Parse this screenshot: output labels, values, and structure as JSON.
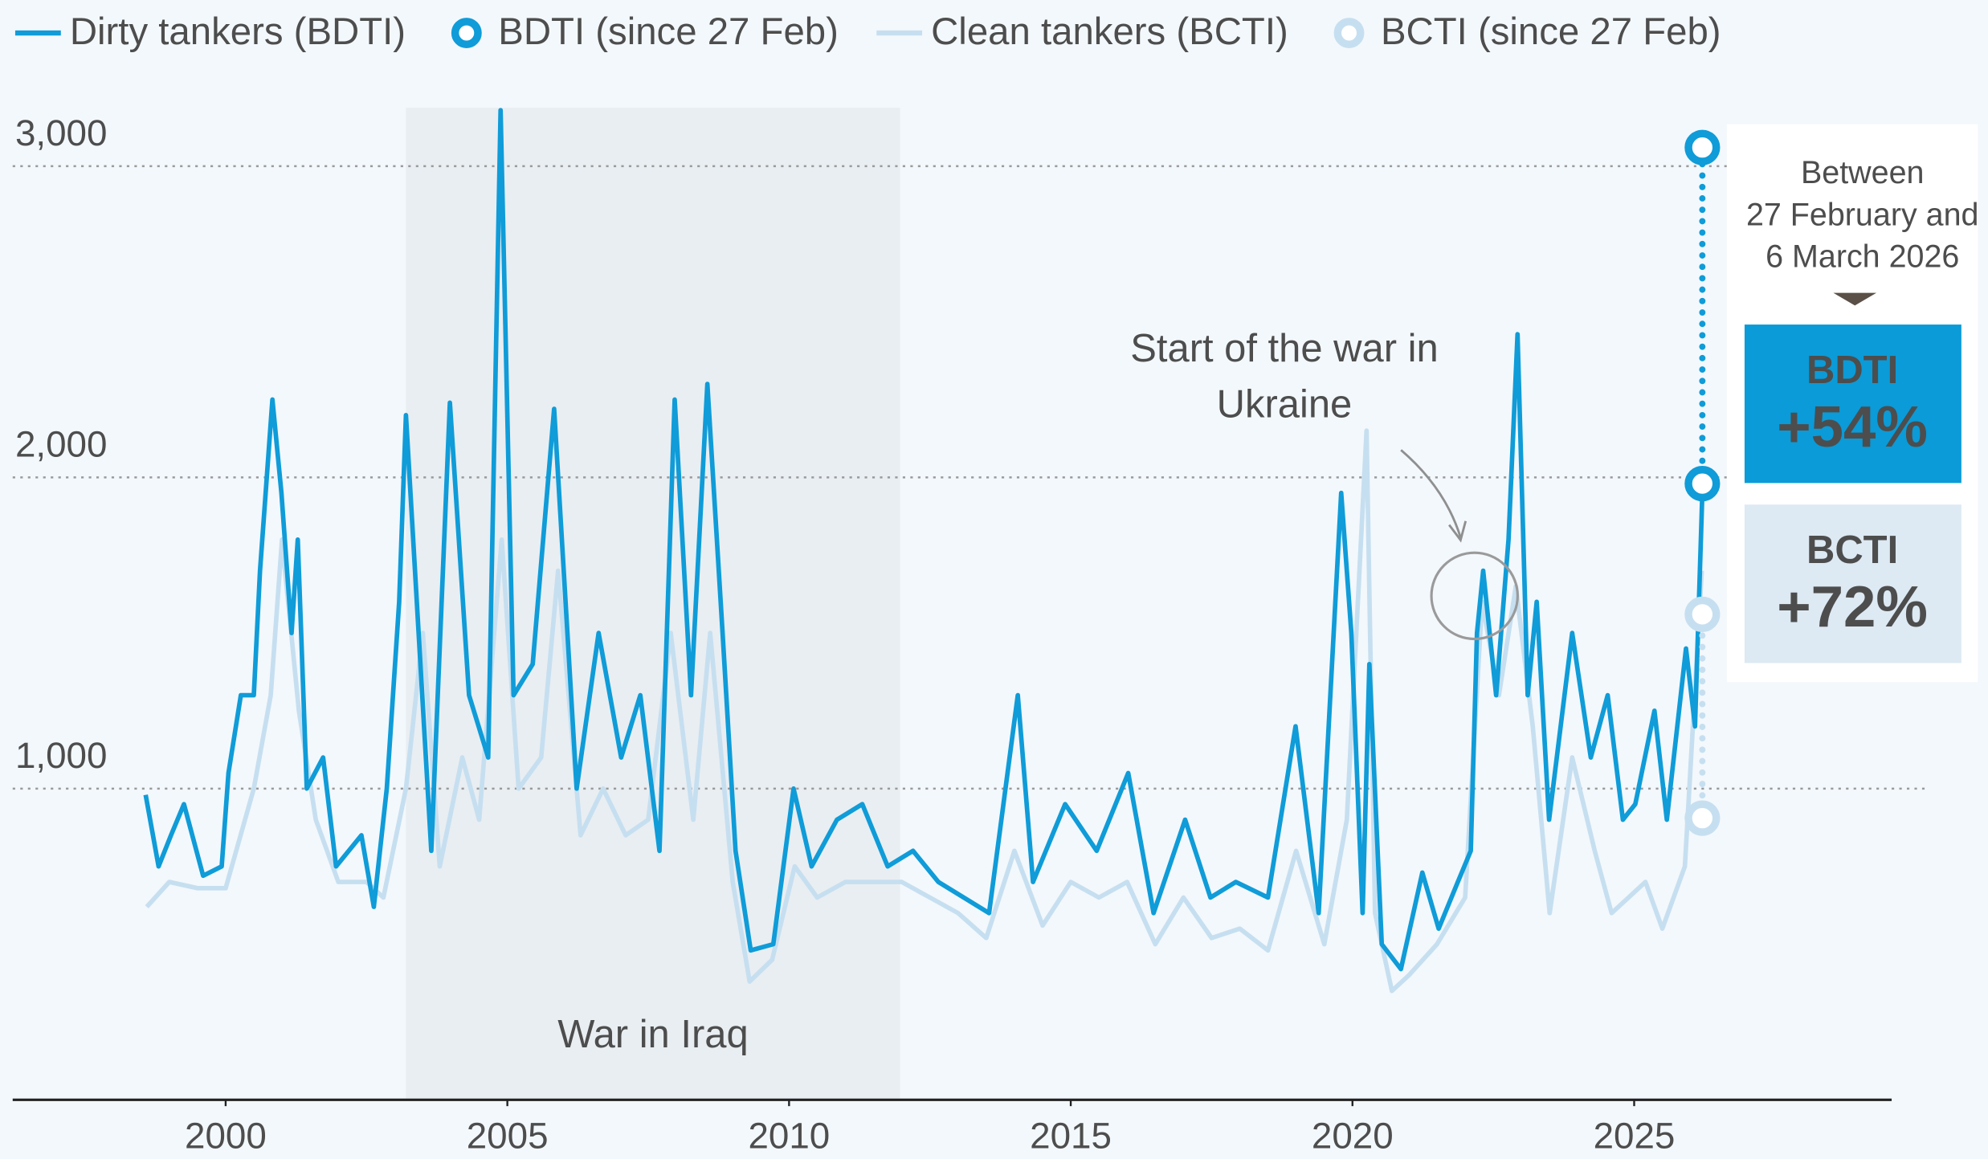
{
  "chart_data": {
    "type": "line",
    "xlim": [
      1996.22,
      2029.57
    ],
    "ylim": [
      0,
      3200
    ],
    "xticks": [
      2000,
      2005,
      2010,
      2015,
      2020,
      2025
    ],
    "yticks": [
      {
        "value": 1000,
        "label": "1,000"
      },
      {
        "value": 2000,
        "label": "2,000"
      },
      {
        "value": 3000,
        "label": "3,000"
      }
    ],
    "grid": true,
    "series": [
      {
        "name": "Dirty tankers (BDTI)",
        "color": "#0f9cd8",
        "x": [
          1998.58,
          1998.81,
          1999.03,
          1999.26,
          1999.6,
          1999.93,
          2000.05,
          2000.27,
          2000.5,
          2000.61,
          2000.83,
          2000.99,
          2001.17,
          2001.28,
          2001.44,
          2001.73,
          2001.96,
          2002.41,
          2002.63,
          2002.86,
          2003.08,
          2003.2,
          2003.65,
          2003.98,
          2004.32,
          2004.66,
          2004.88,
          2005.11,
          2005.45,
          2005.83,
          2006.23,
          2006.62,
          2007.02,
          2007.36,
          2007.7,
          2007.97,
          2008.26,
          2008.55,
          2008.82,
          2009.05,
          2009.32,
          2009.72,
          2010.08,
          2010.4,
          2010.85,
          2011.3,
          2011.75,
          2012.2,
          2012.65,
          2013.1,
          2013.55,
          2014.06,
          2014.33,
          2014.9,
          2015.46,
          2016.02,
          2016.47,
          2017.03,
          2017.48,
          2017.93,
          2018.5,
          2018.99,
          2019.4,
          2019.8,
          2019.98,
          2020.18,
          2020.3,
          2020.52,
          2020.86,
          2021.24,
          2021.53,
          2021.87,
          2022.1,
          2022.21,
          2022.32,
          2022.55,
          2022.77,
          2022.93,
          2023.11,
          2023.27,
          2023.49,
          2023.9,
          2024.23,
          2024.53,
          2024.8,
          2025.02,
          2025.36,
          2025.58,
          2025.92,
          2026.08,
          2026.21
        ],
        "values": [
          980,
          750,
          850,
          950,
          720,
          750,
          1050,
          1300,
          1300,
          1700,
          2250,
          1950,
          1500,
          1800,
          1000,
          1100,
          750,
          850,
          620,
          1000,
          1600,
          2200,
          800,
          2240,
          1300,
          1100,
          3180,
          1300,
          1400,
          2220,
          1000,
          1500,
          1100,
          1300,
          800,
          2250,
          1300,
          2300,
          1500,
          800,
          480,
          500,
          1000,
          750,
          900,
          950,
          750,
          800,
          700,
          650,
          600,
          1300,
          700,
          950,
          800,
          1050,
          600,
          900,
          650,
          700,
          650,
          1200,
          600,
          1950,
          1500,
          600,
          1400,
          500,
          420,
          730,
          550,
          700,
          800,
          1500,
          1700,
          1300,
          1800,
          2460,
          1300,
          1600,
          900,
          1500,
          1100,
          1300,
          900,
          950,
          1250,
          900,
          1450,
          1200,
          1950
        ]
      },
      {
        "name": "BDTI (since 27 Feb)",
        "color": "#0f9cd8",
        "marker": "ring",
        "x": [
          2026.21,
          2026.21
        ],
        "values": [
          1980,
          3060
        ]
      },
      {
        "name": "Clean tankers (BCTI)",
        "color": "#c6dff0",
        "x": [
          1998.6,
          1999.0,
          1999.5,
          2000.0,
          2000.5,
          2000.8,
          2001.0,
          2001.3,
          2001.6,
          2002.0,
          2002.5,
          2002.8,
          2003.2,
          2003.5,
          2003.8,
          2004.2,
          2004.5,
          2004.9,
          2005.2,
          2005.6,
          2005.9,
          2006.3,
          2006.7,
          2007.1,
          2007.5,
          2007.9,
          2008.3,
          2008.6,
          2009.0,
          2009.3,
          2009.7,
          2010.1,
          2010.5,
          2011.0,
          2011.5,
          2012.0,
          2012.5,
          2013.0,
          2013.5,
          2014.0,
          2014.5,
          2015.0,
          2015.5,
          2016.0,
          2016.5,
          2017.0,
          2017.5,
          2018.0,
          2018.5,
          2019.0,
          2019.5,
          2019.9,
          2020.25,
          2020.4,
          2020.7,
          2021.0,
          2021.5,
          2022.0,
          2022.3,
          2022.6,
          2022.9,
          2023.2,
          2023.5,
          2023.9,
          2024.3,
          2024.6,
          2024.9,
          2025.2,
          2025.5,
          2025.9,
          2026.2
        ],
        "values": [
          620,
          700,
          680,
          680,
          1000,
          1300,
          1800,
          1250,
          900,
          700,
          700,
          650,
          1000,
          1500,
          750,
          1100,
          900,
          1800,
          1000,
          1100,
          1700,
          850,
          1000,
          850,
          900,
          1500,
          900,
          1500,
          700,
          380,
          450,
          750,
          650,
          700,
          700,
          700,
          650,
          600,
          520,
          800,
          560,
          700,
          650,
          700,
          500,
          650,
          520,
          550,
          480,
          800,
          500,
          900,
          2150,
          600,
          350,
          400,
          500,
          650,
          1600,
          1300,
          1650,
          1200,
          600,
          1100,
          800,
          600,
          650,
          700,
          550,
          750,
          1700
        ]
      },
      {
        "name": "BCTI (since 27 Feb)",
        "color": "#c6dff0",
        "marker": "ring",
        "x": [
          2026.21,
          2026.21
        ],
        "values": [
          905,
          1560
        ]
      }
    ],
    "shaded": {
      "label": "War in Iraq",
      "x": [
        2003.2,
        2011.97
      ]
    },
    "annotation": {
      "lines": [
        "Start of the war in",
        "Ukraine"
      ]
    },
    "panel": {
      "title_lines": [
        "Between",
        "27 February and",
        "6 March 2026"
      ],
      "items": [
        {
          "name": "BDTI",
          "value": 54,
          "value_label": "+54%"
        },
        {
          "name": "BCTI",
          "value": 72,
          "value_label": "+72%"
        }
      ]
    }
  }
}
